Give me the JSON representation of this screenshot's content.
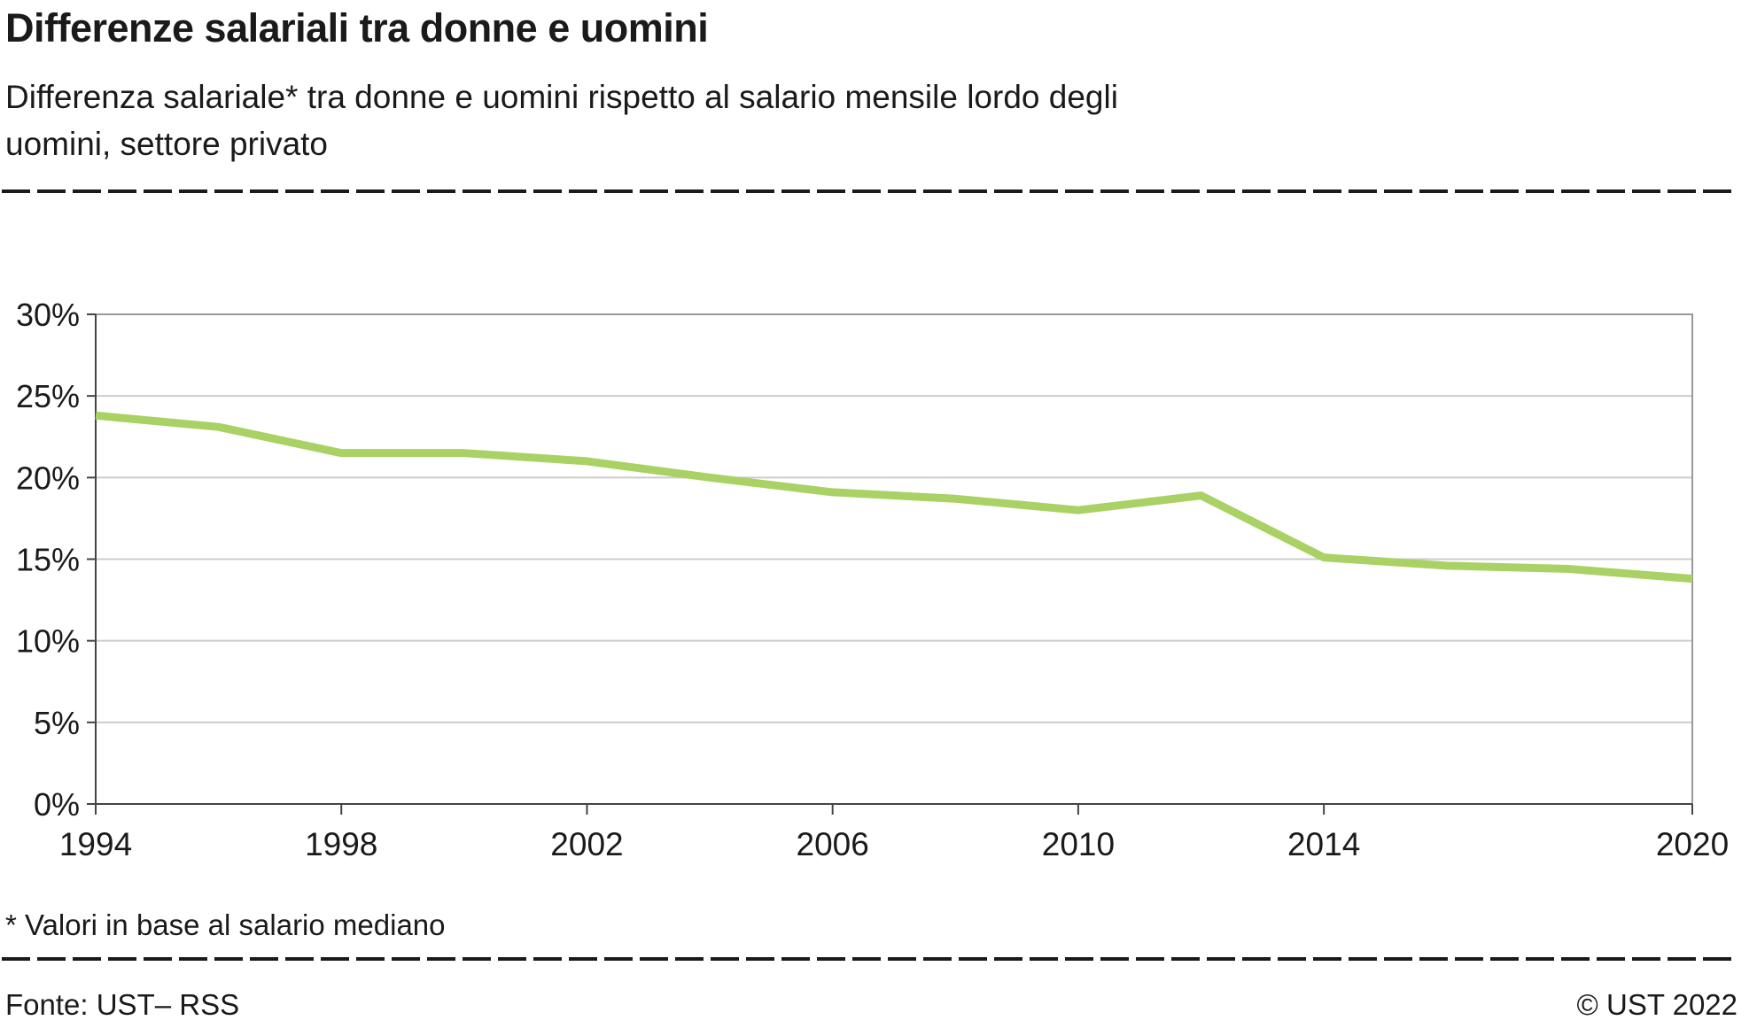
{
  "header": {
    "title": "Differenze salariali tra donne e uomini",
    "subtitle": "Differenza salariale* tra donne e uomini rispetto al salario mensile lordo degli\nuomini, settore privato"
  },
  "chart_data": {
    "type": "line",
    "title": "Differenze salariali tra donne e uomini",
    "subtitle": "Differenza salariale* tra donne e uomini rispetto al salario mensile lordo degli uomini, settore privato",
    "x": [
      1994,
      1996,
      1998,
      2000,
      2002,
      2004,
      2006,
      2008,
      2010,
      2012,
      2014,
      2016,
      2018,
      2020
    ],
    "series": [
      {
        "name": "Differenza salariale, settore privato",
        "values": [
          23.8,
          23.1,
          21.5,
          21.5,
          21.0,
          20.0,
          19.1,
          18.7,
          18.0,
          18.9,
          15.1,
          14.6,
          14.4,
          13.8
        ],
        "color": "#a9d164"
      }
    ],
    "xlabel": "",
    "ylabel": "",
    "xlim": [
      1994,
      2020
    ],
    "ylim": [
      0,
      30
    ],
    "yticks": [
      0,
      5,
      10,
      15,
      20,
      25,
      30
    ],
    "ytick_labels": [
      "0%",
      "5%",
      "10%",
      "15%",
      "20%",
      "25%",
      "30%"
    ],
    "xticks": [
      1994,
      1998,
      2002,
      2006,
      2010,
      2014,
      2020
    ],
    "grid": true,
    "legend_position": "none",
    "colors": {
      "line": "#a9d164",
      "grid": "#cccccc",
      "axis": "#444444",
      "frame": "#999999",
      "text": "#1a1a1a"
    }
  },
  "footnote": "* Valori in base al salario mediano",
  "footer": {
    "source": "Fonte: UST– RSS",
    "copyright": "© UST 2022"
  }
}
